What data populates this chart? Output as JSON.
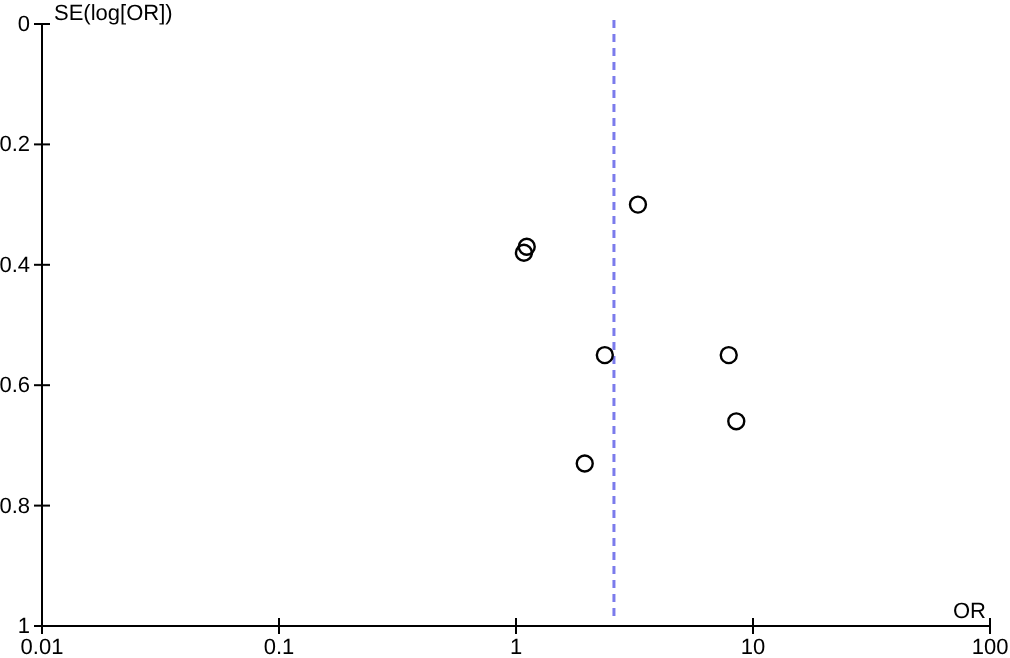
{
  "chart_data": {
    "type": "scatter",
    "xlabel": "OR",
    "ylabel": "SE(log[OR])",
    "log": "x",
    "marker": "circle",
    "grid": false,
    "xlim": [
      0.01,
      100
    ],
    "xticks": [
      0.01,
      0.1,
      1,
      10,
      100
    ],
    "ylim": [
      1,
      0
    ],
    "yticks": [
      0,
      0.2,
      0.4,
      0.6,
      0.8,
      1
    ],
    "series": [
      {
        "color": "#000000",
        "x": [
          3.27,
          1.11,
          1.08,
          2.37,
          7.9,
          8.5,
          1.95
        ],
        "values": [
          0.3,
          0.37,
          0.38,
          0.55,
          0.55,
          0.66,
          0.73
        ]
      }
    ],
    "ref_lines": [
      {
        "axis": "x",
        "value": 2.59,
        "color": "#7b7bec",
        "line_style": "dashed"
      }
    ]
  }
}
